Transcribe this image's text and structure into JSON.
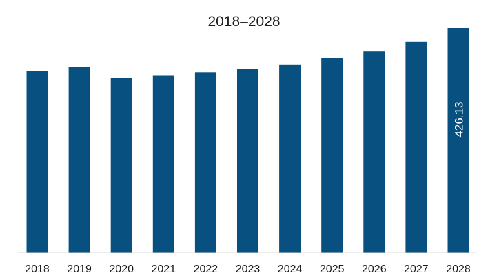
{
  "chart_data": {
    "type": "bar",
    "title": "2018–2028",
    "xlabel": "",
    "ylabel": "",
    "categories": [
      "2018",
      "2019",
      "2020",
      "2021",
      "2022",
      "2023",
      "2024",
      "2025",
      "2026",
      "2027",
      "2028"
    ],
    "values": [
      344.0,
      351.5,
      330.5,
      335.5,
      341.0,
      347.5,
      356.0,
      367.5,
      381.5,
      399.0,
      426.13
    ],
    "data_labels": [
      {
        "category": "2028",
        "text": "426.13"
      }
    ],
    "ylim": [
      0,
      426.13
    ],
    "grid": false,
    "legend": "none",
    "bar_color": "#08507f",
    "axis_color": "#d9d9d9"
  }
}
